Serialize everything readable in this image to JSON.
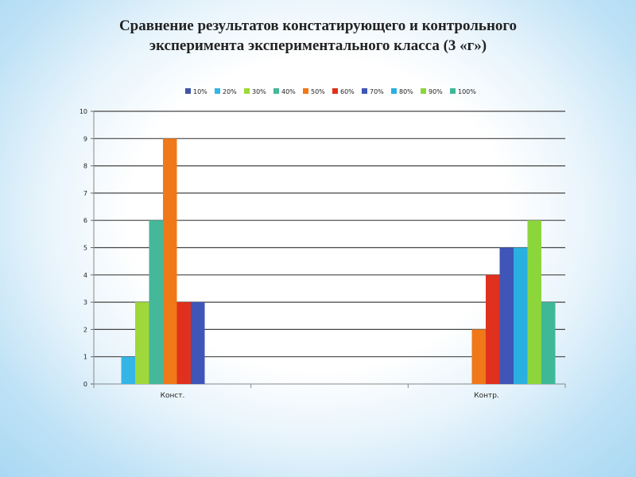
{
  "title_line1": "Сравнение результатов констатирующего и контрольного",
  "title_line2": "эксперимента  экспериментального класса (3 «г»)",
  "chart_data": {
    "type": "bar",
    "title": "Сравнение результатов констатирующего и контрольного эксперимента экспериментального класса (3 «г»)",
    "categories": [
      "Конст.",
      "Контр."
    ],
    "ylim": [
      0,
      10
    ],
    "yticks": [
      0,
      1,
      2,
      3,
      4,
      5,
      6,
      7,
      8,
      9,
      10
    ],
    "grid": true,
    "legend_position": "top",
    "series": [
      {
        "name": "10%",
        "color": "#3f55a7",
        "values": [
          0,
          0
        ]
      },
      {
        "name": "20%",
        "color": "#33b5e5",
        "values": [
          1,
          0
        ]
      },
      {
        "name": "30%",
        "color": "#9fd83a",
        "values": [
          3,
          0
        ]
      },
      {
        "name": "40%",
        "color": "#45b89a",
        "values": [
          6,
          0
        ]
      },
      {
        "name": "50%",
        "color": "#f07818",
        "values": [
          9,
          2
        ]
      },
      {
        "name": "60%",
        "color": "#e0301e",
        "values": [
          3,
          4
        ]
      },
      {
        "name": "70%",
        "color": "#3f55b7",
        "values": [
          3,
          5
        ]
      },
      {
        "name": "80%",
        "color": "#2ab0e0",
        "values": [
          0,
          5
        ]
      },
      {
        "name": "90%",
        "color": "#8cd63c",
        "values": [
          0,
          6
        ]
      },
      {
        "name": "100%",
        "color": "#3fb898",
        "values": [
          0,
          3
        ]
      }
    ]
  }
}
